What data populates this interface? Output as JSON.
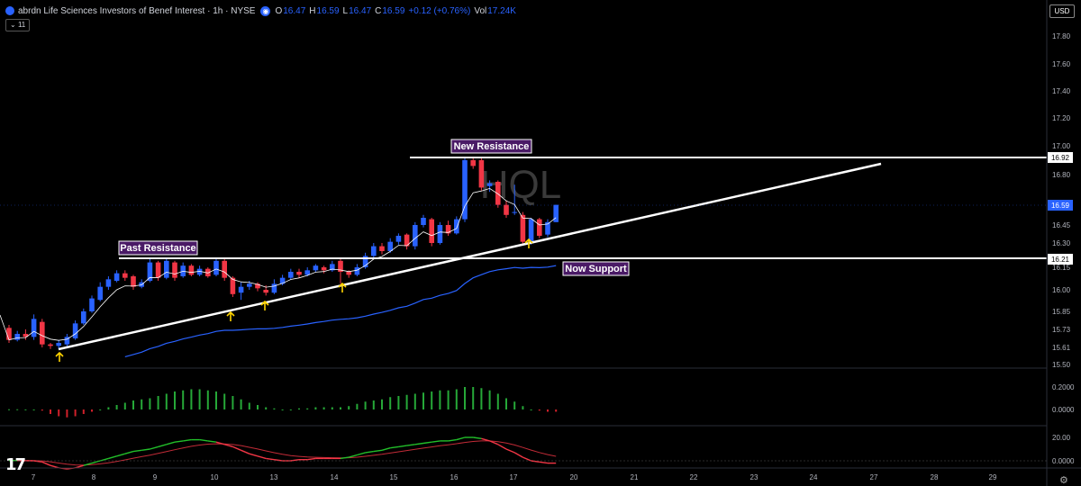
{
  "header": {
    "title": "abrdn Life Sciences Investors of Benef Interest · 1h · NYSE",
    "o_label": "O",
    "o": "16.47",
    "h_label": "H",
    "h": "16.59",
    "l_label": "L",
    "l": "16.47",
    "c_label": "C",
    "c": "16.59",
    "change": "+0.12 (+0.76%)",
    "vol_label": "Vol",
    "vol": "17.24K",
    "collapse_badge": "11"
  },
  "currency_button": "USD",
  "watermark": "HQL",
  "colors": {
    "up": "#2962ff",
    "down": "#f23645",
    "ema_fast": "#ffffff",
    "ema_slow": "#2962ff",
    "hist_pos": "#26a838",
    "hist_neg": "#d0202a",
    "macd": "#22c02a",
    "signal": "#f23645",
    "annotation_bg": "#4a1a66",
    "arrow": "#ffd400",
    "line": "#ffffff"
  },
  "annotations": [
    "New Resistance",
    "Past Resistance",
    "Now Support"
  ],
  "price_tags": {
    "current": "16.59",
    "resistance": "16.92",
    "support": "16.21"
  },
  "chart_data": {
    "type": "candlestick",
    "y_ticks": [
      "17.80",
      "17.60",
      "17.40",
      "17.20",
      "17.00",
      "16.80",
      "16.45",
      "16.30",
      "16.15",
      "16.00",
      "15.85",
      "15.73",
      "15.61",
      "15.50"
    ],
    "x_ticks": [
      "7",
      "8",
      "9",
      "10",
      "13",
      "14",
      "15",
      "16",
      "17",
      "20",
      "21",
      "22",
      "23",
      "24",
      "27",
      "28",
      "29"
    ],
    "candles": [
      [
        15.74,
        15.66,
        15.76,
        15.64
      ],
      [
        15.66,
        15.7,
        15.72,
        15.65
      ],
      [
        15.7,
        15.68,
        15.73,
        15.66
      ],
      [
        15.68,
        15.8,
        15.83,
        15.66
      ],
      [
        15.78,
        15.63,
        15.8,
        15.61
      ],
      [
        15.63,
        15.62,
        15.64,
        15.6
      ],
      [
        15.62,
        15.64,
        15.66,
        15.6
      ],
      [
        15.63,
        15.68,
        15.7,
        15.61
      ],
      [
        15.67,
        15.77,
        15.79,
        15.66
      ],
      [
        15.77,
        15.85,
        15.87,
        15.76
      ],
      [
        15.85,
        15.94,
        15.96,
        15.84
      ],
      [
        15.93,
        16.02,
        16.05,
        15.92
      ],
      [
        16.02,
        16.07,
        16.09,
        16.0
      ],
      [
        16.06,
        16.11,
        16.13,
        16.05
      ],
      [
        16.11,
        16.08,
        16.13,
        16.06
      ],
      [
        16.09,
        16.02,
        16.1,
        16.0
      ],
      [
        16.02,
        16.05,
        16.07,
        16.01
      ],
      [
        16.06,
        16.18,
        16.2,
        16.05
      ],
      [
        16.18,
        16.08,
        16.19,
        16.06
      ],
      [
        16.08,
        16.19,
        16.2,
        16.07
      ],
      [
        16.18,
        16.08,
        16.19,
        16.06
      ],
      [
        16.09,
        16.16,
        16.18,
        16.08
      ],
      [
        16.16,
        16.1,
        16.17,
        16.09
      ],
      [
        16.1,
        16.14,
        16.16,
        16.09
      ],
      [
        16.14,
        16.09,
        16.15,
        16.08
      ],
      [
        16.1,
        16.19,
        16.21,
        16.09
      ],
      [
        16.19,
        16.08,
        16.2,
        16.06
      ],
      [
        16.08,
        15.97,
        16.09,
        15.95
      ],
      [
        15.98,
        16.02,
        16.05,
        15.93
      ],
      [
        16.02,
        16.04,
        16.06,
        16.0
      ],
      [
        16.04,
        16.01,
        16.05,
        15.99
      ],
      [
        16.0,
        15.98,
        16.03,
        15.96
      ],
      [
        15.98,
        16.04,
        16.07,
        15.97
      ],
      [
        16.04,
        16.08,
        16.1,
        16.03
      ],
      [
        16.08,
        16.12,
        16.14,
        16.07
      ],
      [
        16.12,
        16.1,
        16.14,
        16.08
      ],
      [
        16.1,
        16.13,
        16.15,
        16.09
      ],
      [
        16.13,
        16.16,
        16.17,
        16.12
      ],
      [
        16.15,
        16.13,
        16.16,
        16.11
      ],
      [
        16.13,
        16.17,
        16.19,
        16.12
      ],
      [
        16.19,
        16.12,
        16.2,
        16.04
      ],
      [
        16.12,
        16.1,
        16.13,
        16.08
      ],
      [
        16.1,
        16.15,
        16.17,
        16.09
      ],
      [
        16.15,
        16.22,
        16.24,
        16.14
      ],
      [
        16.22,
        16.28,
        16.3,
        16.2
      ],
      [
        16.28,
        16.25,
        16.3,
        16.23
      ],
      [
        16.25,
        16.31,
        16.34,
        16.24
      ],
      [
        16.31,
        16.36,
        16.38,
        16.29
      ],
      [
        16.37,
        16.28,
        16.38,
        16.26
      ],
      [
        16.28,
        16.45,
        16.47,
        16.26
      ],
      [
        16.45,
        16.5,
        16.52,
        16.43
      ],
      [
        16.49,
        16.3,
        16.5,
        16.28
      ],
      [
        16.3,
        16.45,
        16.47,
        16.29
      ],
      [
        16.45,
        16.38,
        16.48,
        16.36
      ],
      [
        16.38,
        16.49,
        16.51,
        16.37
      ],
      [
        16.49,
        16.9,
        16.92,
        16.47
      ],
      [
        16.9,
        16.86,
        16.92,
        16.84
      ],
      [
        16.9,
        16.71,
        16.92,
        16.69
      ],
      [
        16.72,
        16.74,
        16.76,
        16.68
      ],
      [
        16.75,
        16.59,
        16.76,
        16.57
      ],
      [
        16.59,
        16.52,
        16.62,
        16.5
      ],
      [
        16.54,
        16.54,
        16.73,
        16.52
      ],
      [
        16.52,
        16.31,
        16.54,
        16.29
      ],
      [
        16.31,
        16.49,
        16.5,
        16.29
      ],
      [
        16.49,
        16.36,
        16.5,
        16.34
      ],
      [
        16.37,
        16.47,
        16.49,
        16.35
      ],
      [
        16.47,
        16.59,
        16.59,
        16.47
      ]
    ],
    "macd_histogram": [
      0.002,
      0.002,
      0.001,
      0.0,
      -0.01,
      -0.04,
      -0.06,
      -0.07,
      -0.06,
      -0.04,
      -0.02,
      0.0,
      0.02,
      0.04,
      0.06,
      0.08,
      0.09,
      0.1,
      0.12,
      0.14,
      0.16,
      0.17,
      0.18,
      0.18,
      0.17,
      0.16,
      0.14,
      0.12,
      0.09,
      0.06,
      0.04,
      0.02,
      0.01,
      0.0,
      0.0,
      0.01,
      0.01,
      0.02,
      0.02,
      0.02,
      0.02,
      0.03,
      0.05,
      0.07,
      0.08,
      0.09,
      0.11,
      0.12,
      0.13,
      0.14,
      0.15,
      0.16,
      0.17,
      0.17,
      0.18,
      0.2,
      0.2,
      0.19,
      0.17,
      0.14,
      0.1,
      0.07,
      0.03,
      0.0,
      -0.01,
      -0.02,
      -0.02
    ],
    "oscillator_ticks": [
      "20.00",
      "0.0000"
    ],
    "panel2_ticks": [
      "0.2000",
      "0.0000"
    ]
  }
}
